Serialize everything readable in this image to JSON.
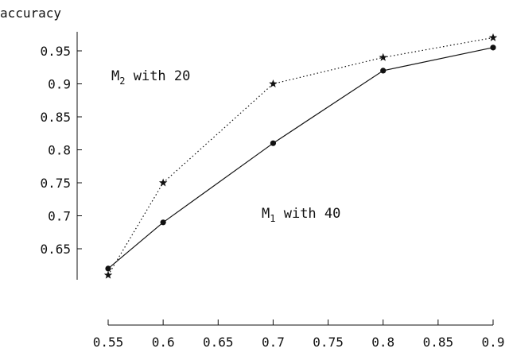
{
  "chart_data": {
    "type": "line",
    "title": "",
    "ylabel": "accuracy",
    "xlabel": "",
    "xlim": [
      0.55,
      0.9
    ],
    "ylim": [
      0.6,
      0.97
    ],
    "xticks": [
      "0.55",
      "0.6",
      "0.65",
      "0.7",
      "0.75",
      "0.8",
      "0.85",
      "0.9"
    ],
    "yticks": [
      "0.65",
      "0.7",
      "0.75",
      "0.8",
      "0.85",
      "0.9",
      "0.95"
    ],
    "grid": false,
    "series": [
      {
        "key": "m1",
        "style": "solid",
        "marker": "dot",
        "color": "#111111",
        "x": [
          0.55,
          0.6,
          0.7,
          0.8,
          0.9
        ],
        "y": [
          0.62,
          0.69,
          0.81,
          0.92,
          0.955
        ]
      },
      {
        "key": "m2",
        "style": "dotted",
        "marker": "star",
        "color": "#111111",
        "x": [
          0.55,
          0.6,
          0.7,
          0.8,
          0.9
        ],
        "y": [
          0.61,
          0.75,
          0.9,
          0.94,
          0.97
        ]
      }
    ],
    "annotations": {
      "m2": {
        "prefix": "M",
        "sub": "2",
        "suffix": " with 20"
      },
      "m1": {
        "prefix": "M",
        "sub": "1",
        "suffix": " with 40"
      }
    }
  }
}
